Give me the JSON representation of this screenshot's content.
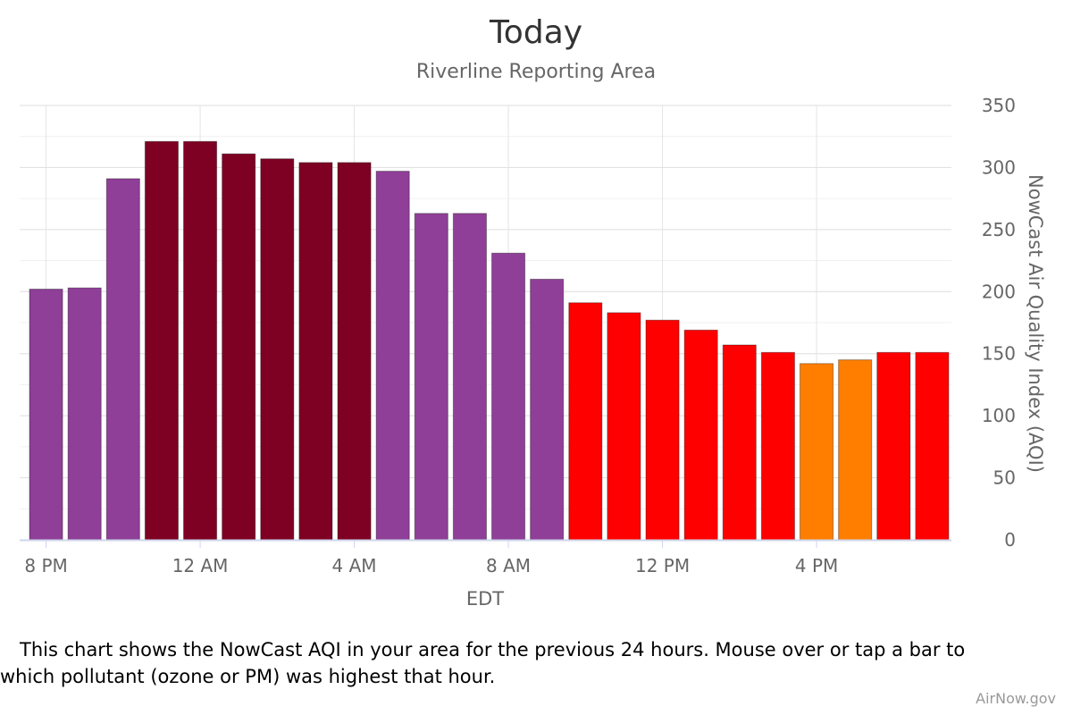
{
  "chart_data": {
    "type": "bar",
    "title": "Today",
    "subtitle": "Riverline Reporting Area",
    "xlabel": "EDT",
    "ylabel": "NowCast Air Quality Index (AQI)",
    "ylim": [
      0,
      350
    ],
    "yticks": [
      0,
      50,
      100,
      150,
      200,
      250,
      300,
      350
    ],
    "y_axis_position": "right",
    "grid": true,
    "x_tick_labels": [
      {
        "label": "8 PM",
        "index": 0
      },
      {
        "label": "12 AM",
        "index": 4
      },
      {
        "label": "4 AM",
        "index": 8
      },
      {
        "label": "8 AM",
        "index": 12
      },
      {
        "label": "12 PM",
        "index": 16
      },
      {
        "label": "4 PM",
        "index": 20
      }
    ],
    "values": [
      202,
      203,
      291,
      321,
      321,
      311,
      307,
      304,
      304,
      297,
      263,
      263,
      231,
      210,
      191,
      183,
      177,
      169,
      157,
      151,
      142,
      145,
      151,
      151
    ],
    "bar_colors": [
      "#8f3f97",
      "#8f3f97",
      "#8f3f97",
      "#7e0023",
      "#7e0023",
      "#7e0023",
      "#7e0023",
      "#7e0023",
      "#7e0023",
      "#8f3f97",
      "#8f3f97",
      "#8f3f97",
      "#8f3f97",
      "#8f3f97",
      "#ff0000",
      "#ff0000",
      "#ff0000",
      "#ff0000",
      "#ff0000",
      "#ff0000",
      "#ff7e00",
      "#ff7e00",
      "#ff0000",
      "#ff0000"
    ]
  },
  "caption": {
    "line1": "This chart shows the NowCast AQI in your area for the previous 24 hours. Mouse over or tap a bar to",
    "line2": "which pollutant (ozone or PM) was highest that hour."
  },
  "credit": "AirNow.gov"
}
